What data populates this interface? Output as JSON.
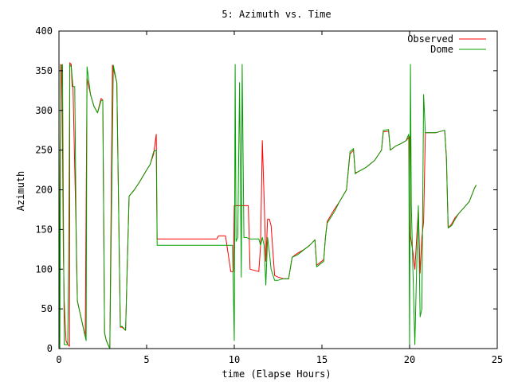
{
  "chart_data": {
    "type": "line",
    "title": "5: Azimuth vs. Time",
    "xlabel": "time (Elapse Hours)",
    "ylabel": "Azimuth",
    "xlim": [
      0,
      25
    ],
    "ylim": [
      0,
      400
    ],
    "xticks": [
      0,
      5,
      10,
      15,
      20,
      25
    ],
    "yticks": [
      0,
      50,
      100,
      150,
      200,
      250,
      300,
      350,
      400
    ],
    "grid": false,
    "legend": "top-right",
    "series": [
      {
        "name": "Observed",
        "color": "#ff0000",
        "points": [
          [
            0.0,
            265
          ],
          [
            0.02,
            80
          ],
          [
            0.05,
            100
          ],
          [
            0.1,
            358
          ],
          [
            0.15,
            356
          ],
          [
            0.2,
            260
          ],
          [
            0.25,
            120
          ],
          [
            0.3,
            60
          ],
          [
            0.4,
            10
          ],
          [
            0.5,
            5
          ],
          [
            0.6,
            3
          ],
          [
            0.62,
            360
          ],
          [
            0.7,
            358
          ],
          [
            0.75,
            330
          ],
          [
            0.8,
            330
          ],
          [
            1.0,
            125
          ],
          [
            1.05,
            60
          ],
          [
            1.1,
            55
          ],
          [
            1.2,
            45
          ],
          [
            1.4,
            25
          ],
          [
            1.5,
            15
          ],
          [
            1.6,
            340
          ],
          [
            1.8,
            320
          ],
          [
            2.0,
            305
          ],
          [
            2.2,
            297
          ],
          [
            2.4,
            315
          ],
          [
            2.5,
            313
          ],
          [
            2.6,
            20
          ],
          [
            2.7,
            10
          ],
          [
            2.9,
            0
          ],
          [
            3.05,
            357
          ],
          [
            3.3,
            335
          ],
          [
            3.5,
            27
          ],
          [
            3.6,
            27
          ],
          [
            3.8,
            23
          ],
          [
            4.0,
            192
          ],
          [
            4.3,
            200
          ],
          [
            4.6,
            210
          ],
          [
            5.0,
            225
          ],
          [
            5.2,
            232
          ],
          [
            5.4,
            245
          ],
          [
            5.55,
            270
          ],
          [
            5.6,
            138
          ],
          [
            9.0,
            138
          ],
          [
            9.1,
            142
          ],
          [
            9.2,
            142
          ],
          [
            9.2,
            142
          ],
          [
            9.3,
            142
          ],
          [
            9.5,
            142
          ],
          [
            9.8,
            97
          ],
          [
            9.95,
            97
          ],
          [
            10.0,
            180
          ],
          [
            10.8,
            180
          ],
          [
            10.9,
            100
          ],
          [
            11.4,
            97
          ],
          [
            11.5,
            130
          ],
          [
            11.6,
            262
          ],
          [
            11.7,
            190
          ],
          [
            11.8,
            110
          ],
          [
            11.9,
            163
          ],
          [
            12.0,
            163
          ],
          [
            12.1,
            155
          ],
          [
            12.3,
            92
          ],
          [
            12.5,
            90
          ],
          [
            12.8,
            88
          ],
          [
            13.1,
            88
          ],
          [
            13.3,
            115
          ],
          [
            13.6,
            120
          ],
          [
            14.0,
            125
          ],
          [
            14.3,
            130
          ],
          [
            14.6,
            137
          ],
          [
            14.7,
            105
          ],
          [
            15.1,
            112
          ],
          [
            15.2,
            140
          ],
          [
            15.3,
            160
          ],
          [
            15.7,
            175
          ],
          [
            16.0,
            185
          ],
          [
            16.4,
            200
          ],
          [
            16.6,
            245
          ],
          [
            16.8,
            250
          ],
          [
            16.9,
            222
          ],
          [
            17.0,
            222
          ],
          [
            17.5,
            228
          ],
          [
            18.0,
            237
          ],
          [
            18.4,
            250
          ],
          [
            18.5,
            273
          ],
          [
            18.8,
            274
          ],
          [
            18.9,
            250
          ],
          [
            19.2,
            255
          ],
          [
            19.5,
            258
          ],
          [
            19.8,
            262
          ],
          [
            20.0,
            267
          ],
          [
            20.05,
            142
          ],
          [
            20.2,
            120
          ],
          [
            20.3,
            100
          ],
          [
            20.5,
            175
          ],
          [
            20.6,
            95
          ],
          [
            20.7,
            140
          ],
          [
            20.8,
            160
          ],
          [
            20.9,
            272
          ],
          [
            21.1,
            272
          ],
          [
            21.5,
            272
          ],
          [
            22.0,
            275
          ],
          [
            22.1,
            240
          ],
          [
            22.2,
            152
          ],
          [
            22.4,
            157
          ],
          [
            22.6,
            165
          ],
          [
            22.8,
            170
          ],
          [
            23.0,
            175
          ],
          [
            23.4,
            185
          ],
          [
            23.7,
            202
          ],
          [
            23.8,
            206
          ]
        ]
      },
      {
        "name": "Dome",
        "color": "#00a000",
        "points": [
          [
            0.0,
            270
          ],
          [
            0.05,
            0
          ],
          [
            0.1,
            355
          ],
          [
            0.2,
            358
          ],
          [
            0.3,
            5
          ],
          [
            0.4,
            5
          ],
          [
            0.5,
            5
          ],
          [
            0.55,
            100
          ],
          [
            0.62,
            358
          ],
          [
            0.7,
            355
          ],
          [
            0.8,
            330
          ],
          [
            0.9,
            330
          ],
          [
            1.0,
            110
          ],
          [
            1.05,
            60
          ],
          [
            1.1,
            55
          ],
          [
            1.2,
            45
          ],
          [
            1.4,
            25
          ],
          [
            1.55,
            10
          ],
          [
            1.6,
            355
          ],
          [
            1.8,
            320
          ],
          [
            2.0,
            305
          ],
          [
            2.2,
            297
          ],
          [
            2.4,
            312
          ],
          [
            2.5,
            313
          ],
          [
            2.6,
            20
          ],
          [
            2.7,
            10
          ],
          [
            2.9,
            0
          ],
          [
            3.1,
            357
          ],
          [
            3.3,
            335
          ],
          [
            3.5,
            28
          ],
          [
            3.6,
            28
          ],
          [
            3.8,
            23
          ],
          [
            4.0,
            192
          ],
          [
            4.3,
            200
          ],
          [
            4.6,
            210
          ],
          [
            5.0,
            225
          ],
          [
            5.2,
            232
          ],
          [
            5.4,
            248
          ],
          [
            5.55,
            250
          ],
          [
            5.6,
            130
          ],
          [
            9.0,
            130
          ],
          [
            9.3,
            130
          ],
          [
            9.6,
            130
          ],
          [
            9.8,
            130
          ],
          [
            9.9,
            130
          ],
          [
            10.0,
            10
          ],
          [
            10.05,
            358
          ],
          [
            10.1,
            135
          ],
          [
            10.2,
            140
          ],
          [
            10.3,
            335
          ],
          [
            10.4,
            90
          ],
          [
            10.45,
            358
          ],
          [
            10.55,
            140
          ],
          [
            10.7,
            140
          ],
          [
            10.9,
            138
          ],
          [
            11.4,
            138
          ],
          [
            11.5,
            130
          ],
          [
            11.6,
            140
          ],
          [
            11.7,
            130
          ],
          [
            11.8,
            80
          ],
          [
            11.9,
            140
          ],
          [
            12.0,
            122
          ],
          [
            12.1,
            100
          ],
          [
            12.3,
            86
          ],
          [
            12.5,
            86
          ],
          [
            12.8,
            88
          ],
          [
            13.1,
            88
          ],
          [
            13.3,
            115
          ],
          [
            13.6,
            118
          ],
          [
            14.0,
            125
          ],
          [
            14.3,
            130
          ],
          [
            14.6,
            137
          ],
          [
            14.7,
            103
          ],
          [
            15.1,
            110
          ],
          [
            15.2,
            140
          ],
          [
            15.3,
            158
          ],
          [
            15.7,
            172
          ],
          [
            16.0,
            185
          ],
          [
            16.4,
            200
          ],
          [
            16.6,
            248
          ],
          [
            16.8,
            252
          ],
          [
            16.9,
            220
          ],
          [
            17.0,
            222
          ],
          [
            17.5,
            228
          ],
          [
            18.0,
            237
          ],
          [
            18.4,
            250
          ],
          [
            18.5,
            275
          ],
          [
            18.8,
            276
          ],
          [
            18.9,
            250
          ],
          [
            19.2,
            255
          ],
          [
            19.5,
            258
          ],
          [
            19.8,
            262
          ],
          [
            19.95,
            270
          ],
          [
            20.0,
            0
          ],
          [
            20.05,
            358
          ],
          [
            20.1,
            180
          ],
          [
            20.2,
            90
          ],
          [
            20.3,
            5
          ],
          [
            20.4,
            100
          ],
          [
            20.5,
            180
          ],
          [
            20.6,
            40
          ],
          [
            20.7,
            50
          ],
          [
            20.8,
            320
          ],
          [
            20.9,
            272
          ],
          [
            21.1,
            272
          ],
          [
            21.5,
            272
          ],
          [
            22.0,
            275
          ],
          [
            22.1,
            242
          ],
          [
            22.2,
            152
          ],
          [
            22.4,
            155
          ],
          [
            22.6,
            163
          ],
          [
            22.8,
            170
          ],
          [
            23.0,
            175
          ],
          [
            23.4,
            185
          ],
          [
            23.7,
            202
          ],
          [
            23.8,
            206
          ]
        ]
      }
    ]
  }
}
